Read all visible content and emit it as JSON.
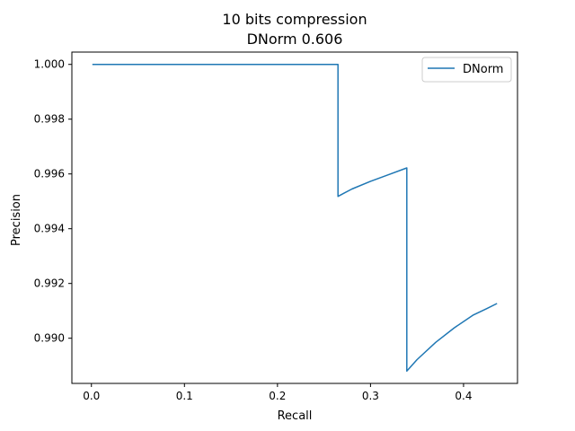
{
  "chart_data": {
    "type": "line",
    "title_line1": "10 bits compression",
    "title_line2": "DNorm 0.606",
    "xlabel": "Recall",
    "ylabel": "Precision",
    "xlim": [
      -0.021,
      0.458
    ],
    "ylim": [
      0.98835,
      1.00045
    ],
    "xticks": [
      0.0,
      0.1,
      0.2,
      0.3,
      0.4
    ],
    "xtick_labels": [
      "0.0",
      "0.1",
      "0.2",
      "0.3",
      "0.4"
    ],
    "yticks": [
      0.99,
      0.992,
      0.994,
      0.996,
      0.998,
      1.0
    ],
    "ytick_labels": [
      "0.990",
      "0.992",
      "0.994",
      "0.996",
      "0.998",
      "1.000"
    ],
    "grid": false,
    "legend_position": "upper right",
    "series": [
      {
        "name": "DNorm",
        "color": "#1f77b4",
        "x": [
          0.001,
          0.265,
          0.265,
          0.28,
          0.3,
          0.32,
          0.339,
          0.339,
          0.35,
          0.37,
          0.39,
          0.41,
          0.425,
          0.436
        ],
        "y": [
          1.0,
          1.0,
          0.99518,
          0.99545,
          0.99573,
          0.99598,
          0.99622,
          0.9888,
          0.98922,
          0.98985,
          0.99038,
          0.99084,
          0.99108,
          0.99127
        ]
      }
    ]
  }
}
